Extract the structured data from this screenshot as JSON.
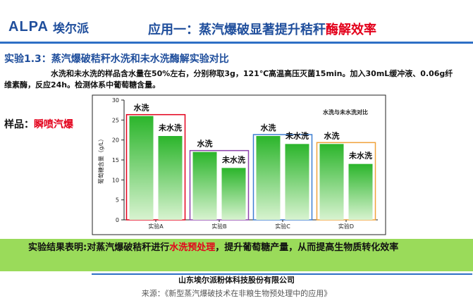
{
  "header": {
    "logo_latin": "ALPA",
    "logo_cn": "埃尔派",
    "title_main": "应用一：蒸汽爆破显著提升秸秆",
    "title_highlight": "酶解效率"
  },
  "section_title": "实验1.3：蒸汽爆破秸秆水洗和未水洗酶解实验对比",
  "description": "水洗和未水洗的样品含水量在50%左右，分别称取3g，121℃高温高压灭菌15min。加入30mL缓冲液、0.06g纤维素酶，反应24h。检测体系中葡萄糖含量。",
  "sample": {
    "label": "样品：",
    "value": "瞬喷汽爆"
  },
  "chart_data": {
    "type": "bar",
    "title": "水洗与未水洗对比",
    "ylabel": "葡萄糖含量（g/L）",
    "xlabel": "",
    "ylim": [
      0,
      30
    ],
    "yticks": [
      0,
      5,
      10,
      15,
      20,
      25,
      30
    ],
    "grid": false,
    "categories": [
      "实验A",
      "实验B",
      "实验C",
      "实验D"
    ],
    "series": [
      {
        "name": "水洗",
        "values": [
          26,
          17,
          21,
          19
        ]
      },
      {
        "name": "未水洗",
        "values": [
          21,
          13,
          19,
          14
        ]
      }
    ],
    "group_box_colors": [
      "#e3001b",
      "#8e44ad",
      "#3e7fd1",
      "#f0a23a"
    ]
  },
  "result": {
    "prefix": "实验结果表明:对蒸汽爆破秸秆进行",
    "highlight": "水洗预处理",
    "suffix": "，提升葡萄糖产量，从而提高生物质转化效率"
  },
  "company": "山东埃尔派粉体科技股份有限公司",
  "source": "来源：《新型蒸汽爆破技术在非粮生物预处理中的应用》",
  "colors": {
    "brand": "#1f4e9c",
    "accent_red": "#e3001b",
    "bar_top": "#2bb52b",
    "bar_bottom": "#d8f3d0",
    "result_bg": "#9adb5a"
  }
}
